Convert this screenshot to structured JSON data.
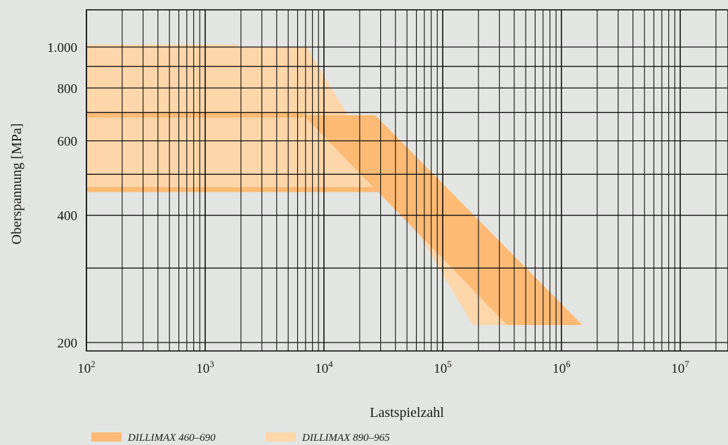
{
  "chart_data": {
    "type": "area",
    "title": "",
    "xlabel": "Lastspielzahl",
    "ylabel": "Oberspannung  [MPa]",
    "x_scale": "log",
    "y_scale": "log",
    "xlim": [
      100,
      10000000
    ],
    "ylim": [
      190,
      1200
    ],
    "x_ticks": [
      {
        "value": 100,
        "base": "10",
        "exp": "2"
      },
      {
        "value": 1000,
        "base": "10",
        "exp": "3"
      },
      {
        "value": 10000,
        "base": "10",
        "exp": "4"
      },
      {
        "value": 100000,
        "base": "10",
        "exp": "5"
      },
      {
        "value": 1000000,
        "base": "10",
        "exp": "6"
      },
      {
        "value": 10000000,
        "base": "10",
        "exp": "7"
      }
    ],
    "y_ticks": [
      {
        "value": 200,
        "label": "200"
      },
      {
        "value": 400,
        "label": "400"
      },
      {
        "value": 600,
        "label": "600"
      },
      {
        "value": 800,
        "label": "800"
      },
      {
        "value": 1000,
        "label": "1.000"
      }
    ],
    "grid": true,
    "legend_position": "bottom-left",
    "series": [
      {
        "name": "DILLIMAX 890–965",
        "color": "#fdd6aa",
        "band": [
          [
            100,
            1000
          ],
          [
            7200,
            1000
          ],
          [
            180000,
            220
          ],
          [
            1500000,
            220
          ],
          [
            30000,
            460
          ],
          [
            100,
            460
          ]
        ]
      },
      {
        "name": "DILLIMAX 460–690",
        "color": "#fcba74",
        "band": [
          [
            100,
            690
          ],
          [
            27000,
            690
          ],
          [
            1500000,
            220
          ],
          [
            350000,
            220
          ],
          [
            6700,
            690
          ],
          [
            100,
            690
          ]
        ]
      }
    ],
    "plateaus": [
      {
        "series": "DILLIMAX 890–965",
        "y": 1000,
        "x_end": 1900
      },
      {
        "series": "DILLIMAX 460–690",
        "y": 690,
        "x_end": 6700
      },
      {
        "series": "DILLIMAX 460–690",
        "y": 460,
        "x_end": 30000
      }
    ]
  }
}
